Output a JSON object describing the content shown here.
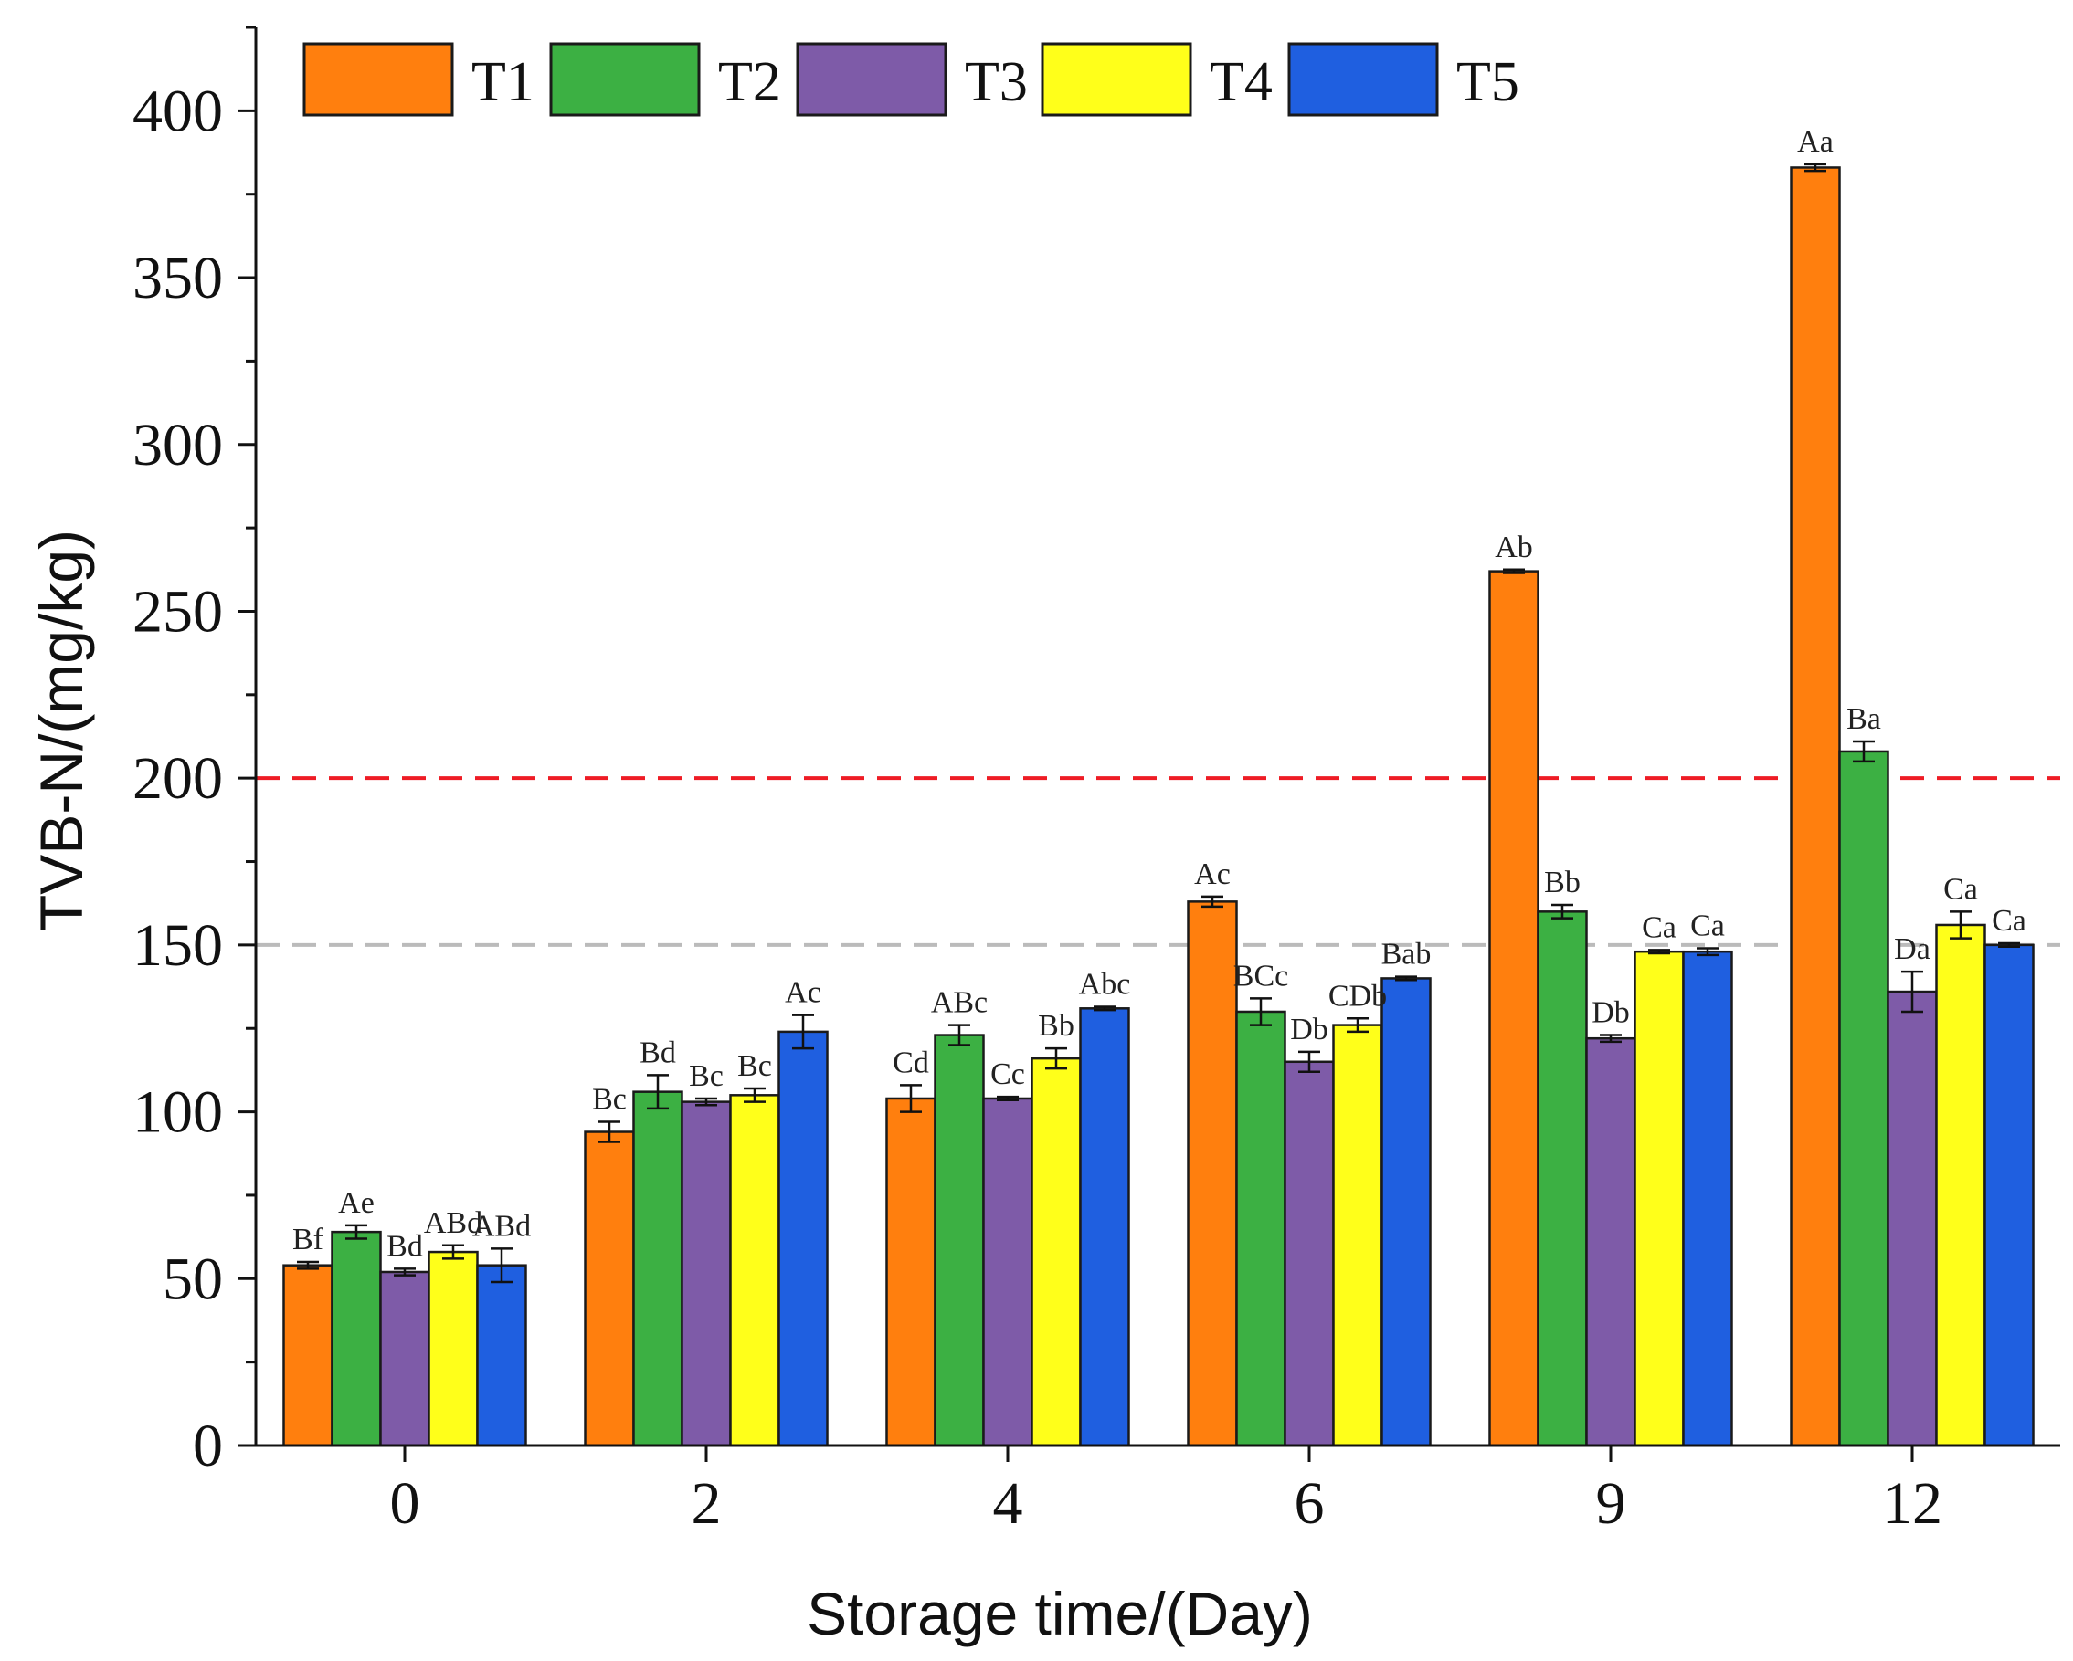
{
  "chart_data": {
    "type": "bar",
    "title": "",
    "xlabel": "Storage time/(Day)",
    "ylabel": "TVB-N/(mg/kg)",
    "ylim": [
      0,
      425
    ],
    "yticks": [
      "0",
      "50",
      "100",
      "150",
      "200",
      "250",
      "300",
      "350",
      "400"
    ],
    "categories": [
      "0",
      "2",
      "4",
      "6",
      "9",
      "12"
    ],
    "legend_position": "top-left",
    "reference_lines": [
      {
        "value": 200,
        "color": "#ee1c25",
        "style": "dashed"
      },
      {
        "value": 150,
        "color": "#bbbbbb",
        "style": "dashed"
      }
    ],
    "series": [
      {
        "name": "T1",
        "color": "#ff7f0e",
        "values": [
          54,
          94,
          104,
          163,
          262,
          383
        ],
        "errors": [
          1,
          3,
          4,
          1.5,
          0.5,
          1
        ],
        "labels": [
          "Bf",
          "Bc",
          "Cd",
          "Ac",
          "Ab",
          "Aa"
        ]
      },
      {
        "name": "T2",
        "color": "#3cb043",
        "values": [
          64,
          106,
          123,
          130,
          160,
          208
        ],
        "errors": [
          2,
          5,
          3,
          4,
          2,
          3
        ],
        "labels": [
          "Ae",
          "Bd",
          "ABc",
          "BCc",
          "Bb",
          "Ba"
        ]
      },
      {
        "name": "T3",
        "color": "#7e5ba8",
        "values": [
          52,
          103,
          104,
          115,
          122,
          136
        ],
        "errors": [
          1,
          1,
          0.5,
          3,
          1,
          6
        ],
        "labels": [
          "Bd",
          "Bc",
          "Cc",
          "Db",
          "Db",
          "Da"
        ]
      },
      {
        "name": "T4",
        "color": "#ffff1a",
        "values": [
          58,
          105,
          116,
          126,
          148,
          156
        ],
        "errors": [
          2,
          2,
          3,
          2,
          0.5,
          4
        ],
        "labels": [
          "ABd",
          "Bc",
          "Bb",
          "CDb",
          "Ca",
          "Ca"
        ]
      },
      {
        "name": "T5",
        "color": "#1f5fe0",
        "values": [
          54,
          124,
          131,
          140,
          148,
          150
        ],
        "errors": [
          5,
          5,
          0.5,
          0.5,
          1,
          0.5
        ],
        "labels": [
          "ABd",
          "Ac",
          "Abc",
          "Bab",
          "Ca",
          "Ca"
        ]
      }
    ]
  }
}
